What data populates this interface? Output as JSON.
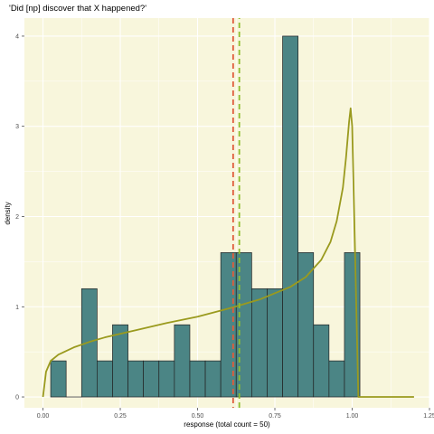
{
  "colors": {
    "panel": "#f8f6dc",
    "grid": "#ffffff",
    "bar_fill": "#4b8585",
    "bar_stroke": "#222222",
    "density_line": "#9a9a1e",
    "mean_line": "#e05c3c",
    "median_line": "#8fbf2f"
  },
  "chart_data": {
    "type": "bar",
    "title": "'Did [np] discover that X happened?'",
    "xlabel": "response (total count = 50)",
    "ylabel": "density",
    "xlim": [
      -0.06,
      1.25
    ],
    "ylim": [
      -0.12,
      4.2
    ],
    "x_ticks": [
      0,
      0.25,
      0.5,
      0.75,
      1.0,
      1.25
    ],
    "x_tick_labels": [
      "0.00",
      "0.25",
      "0.50",
      "0.75",
      "1.00",
      "1.25"
    ],
    "y_ticks": [
      0,
      1,
      2,
      3,
      4
    ],
    "y_tick_labels": [
      "0",
      "1",
      "2",
      "3",
      "4"
    ],
    "bin_width": 0.05,
    "histogram": {
      "bin_starts": [
        0.025,
        0.075,
        0.125,
        0.175,
        0.225,
        0.275,
        0.325,
        0.375,
        0.425,
        0.475,
        0.525,
        0.575,
        0.625,
        0.675,
        0.725,
        0.775,
        0.825,
        0.875,
        0.925,
        0.975
      ],
      "density": [
        0.4,
        0,
        1.2,
        0.4,
        0.8,
        0.4,
        0.4,
        0.4,
        0.8,
        0.4,
        0.4,
        1.6,
        1.6,
        1.2,
        1.2,
        4.0,
        1.6,
        0.8,
        0.4,
        1.6
      ]
    },
    "density_curve": {
      "x": [
        0.0,
        0.01,
        0.025,
        0.05,
        0.1,
        0.15,
        0.2,
        0.3,
        0.4,
        0.5,
        0.6,
        0.7,
        0.8,
        0.85,
        0.9,
        0.93,
        0.95,
        0.97,
        0.98,
        0.99,
        0.995,
        1.0,
        1.02,
        1.05,
        1.1,
        1.2
      ],
      "y": [
        0.0,
        0.28,
        0.4,
        0.47,
        0.55,
        0.61,
        0.66,
        0.74,
        0.82,
        0.89,
        0.98,
        1.08,
        1.22,
        1.33,
        1.52,
        1.72,
        1.95,
        2.32,
        2.65,
        3.05,
        3.2,
        3.0,
        0.0,
        0.0,
        0.0,
        0.0
      ]
    },
    "vlines": [
      {
        "x": 0.615,
        "style": "dashed"
      },
      {
        "x": 0.635,
        "style": "dashed"
      }
    ]
  }
}
